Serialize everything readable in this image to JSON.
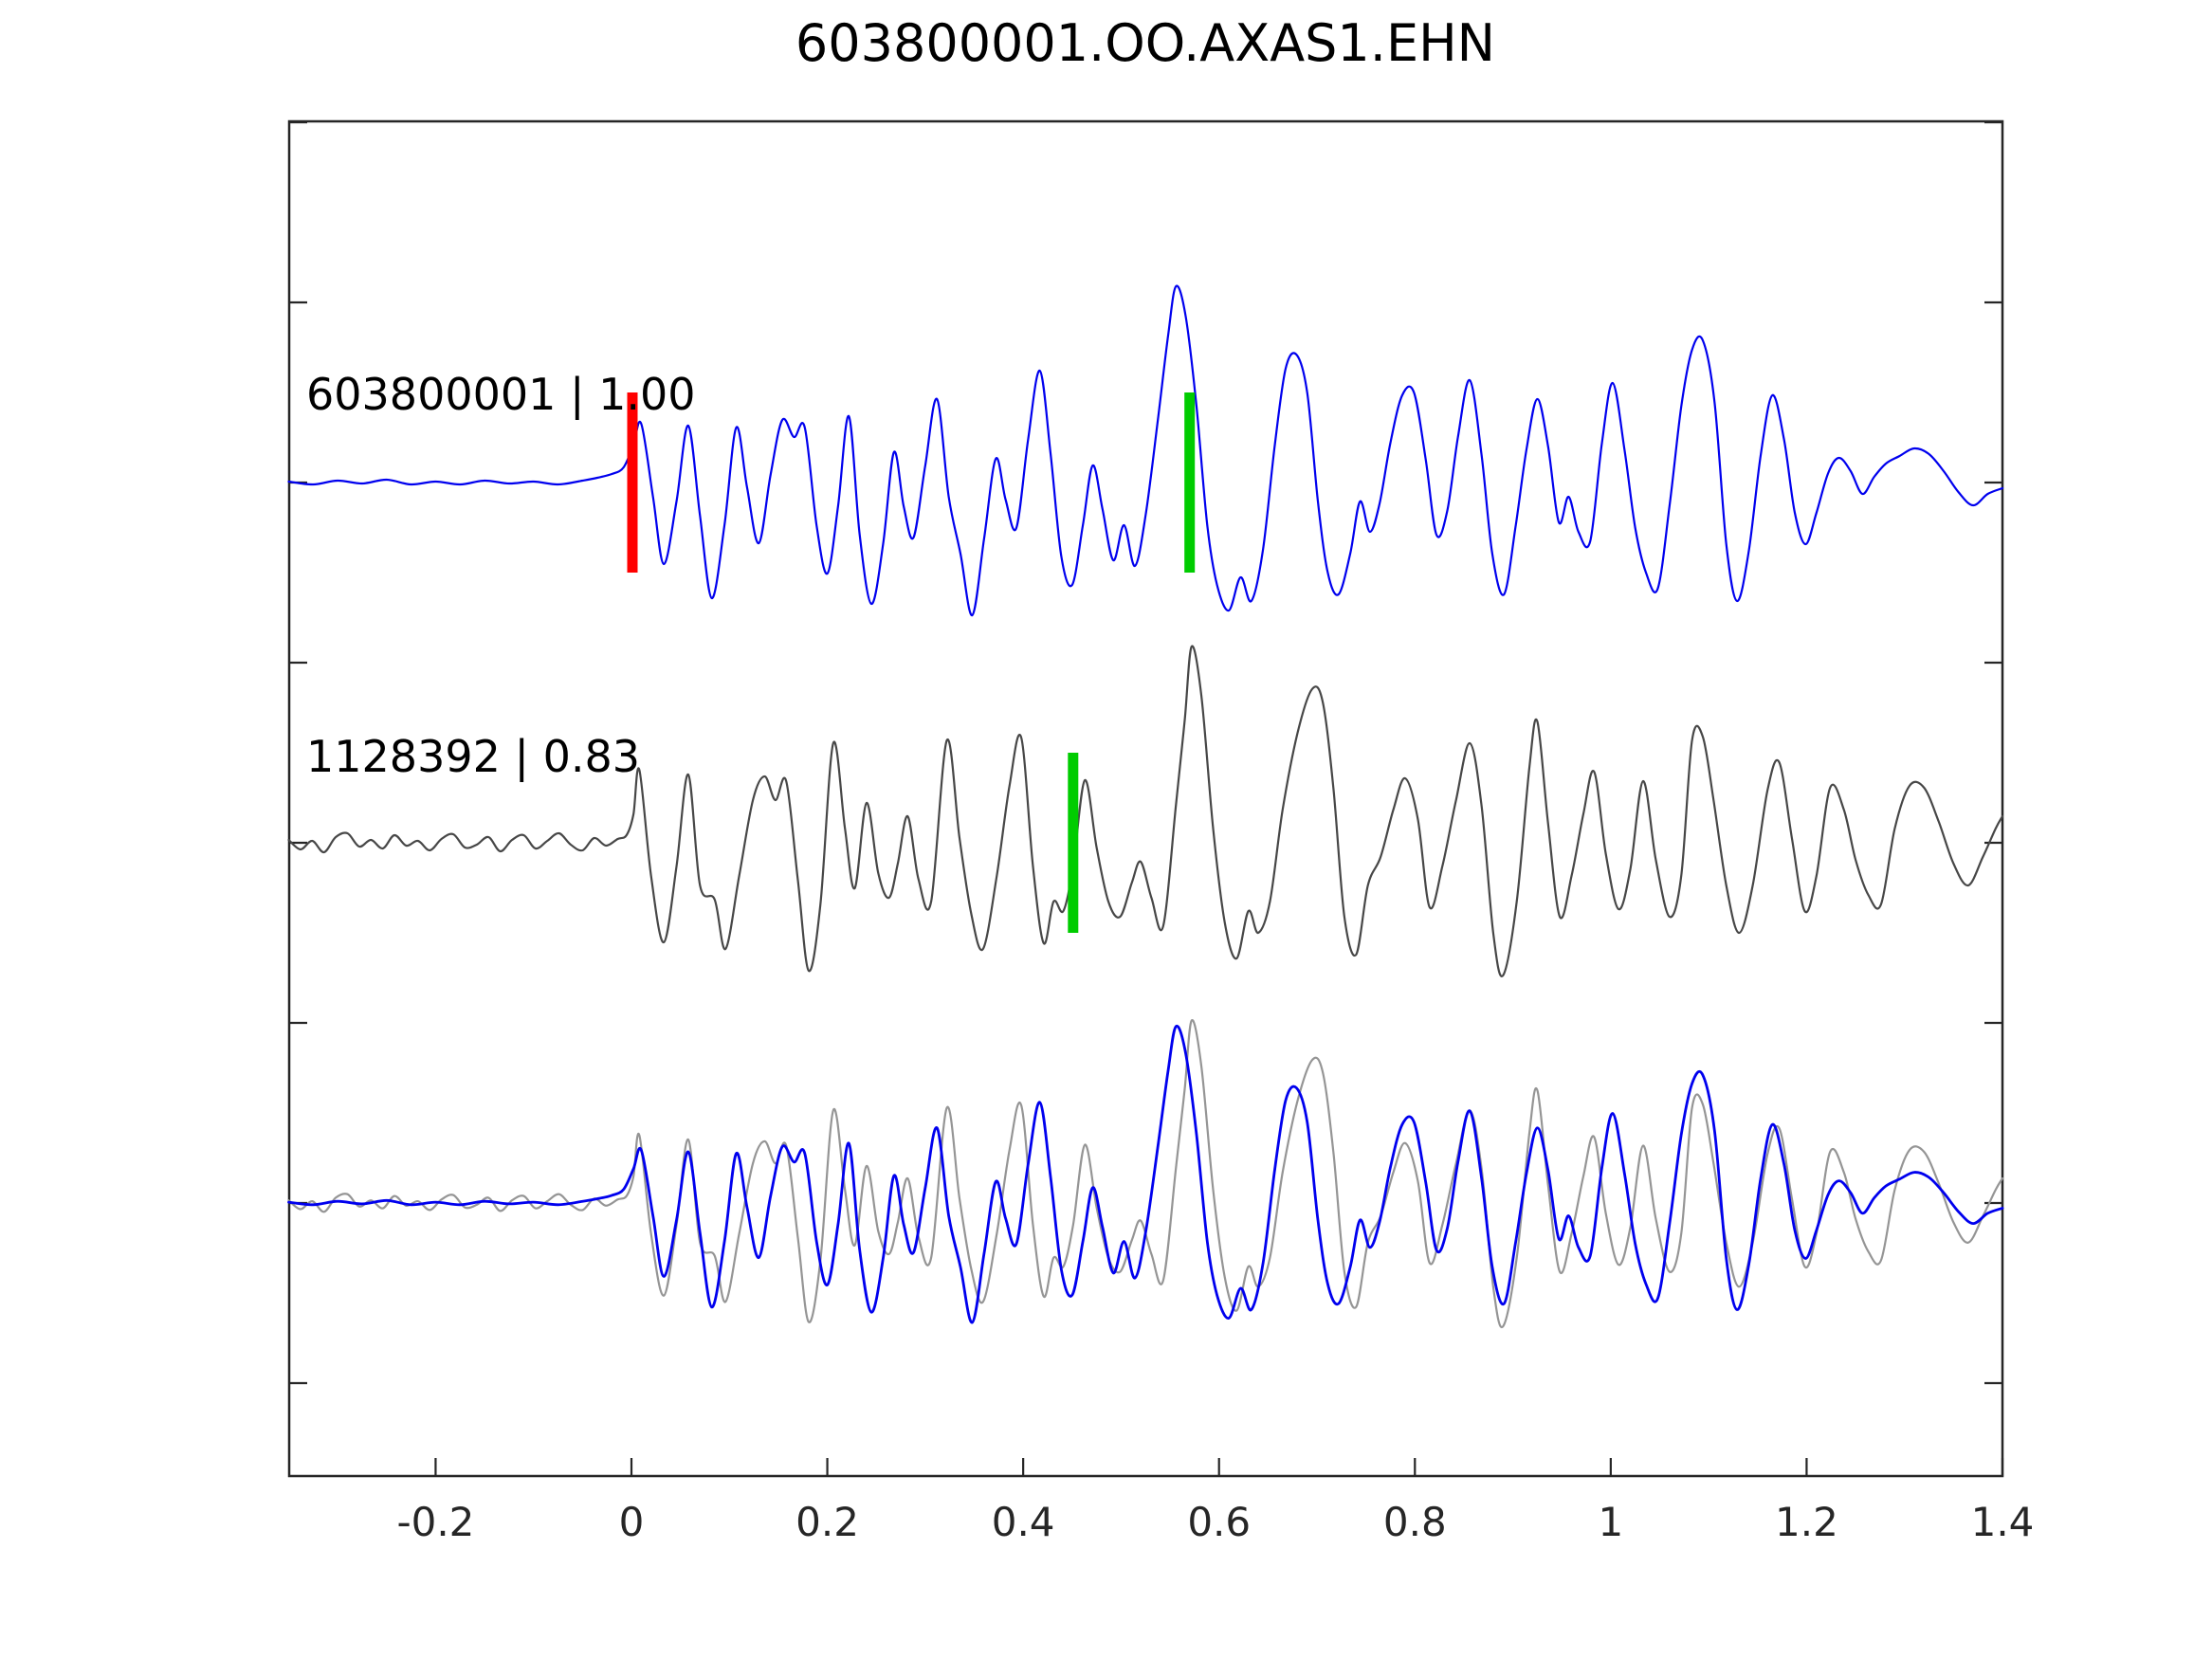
{
  "title": "603800001.OO.AXAS1.EHN",
  "chart_data": {
    "type": "line",
    "title": "603800001.OO.AXAS1.EHN",
    "xlabel": "",
    "ylabel": "",
    "xlim": [
      -0.35,
      1.4
    ],
    "grid": false,
    "legend": "none",
    "x_ticks": [
      -0.2,
      0,
      0.2,
      0.4,
      0.6,
      0.8,
      1.0,
      1.2,
      1.4
    ],
    "x_tick_labels": [
      "-0.2",
      "0",
      "0.2",
      "0.4",
      "0.6",
      "0.8",
      "1",
      "1.2",
      "1.4"
    ],
    "colors": {
      "trace1": "#0000ee",
      "trace2": "#474747",
      "overlay_gray": "#959595",
      "overlay_blue": "#0000ee",
      "pick_red": "#ff0000",
      "pick_green": "#00cc00",
      "axis": "#262626"
    },
    "traces": [
      {
        "id": "603800001",
        "score": "1.00",
        "label": "603800001 | 1.00",
        "row": 0,
        "color": "#0000ee",
        "markers": [
          {
            "name": "pick-red",
            "color": "#ff0000",
            "t": 0.001
          },
          {
            "name": "pick-green",
            "color": "#00cc00",
            "t": 0.57
          }
        ],
        "points": [
          [
            -0.35,
            1
          ],
          [
            -0.325,
            -2
          ],
          [
            -0.3,
            2
          ],
          [
            -0.275,
            -1
          ],
          [
            -0.25,
            3
          ],
          [
            -0.225,
            -2
          ],
          [
            -0.2,
            1
          ],
          [
            -0.175,
            -2
          ],
          [
            -0.15,
            2
          ],
          [
            -0.125,
            -1
          ],
          [
            -0.1,
            1
          ],
          [
            -0.075,
            -2
          ],
          [
            -0.05,
            2
          ],
          [
            -0.035,
            5
          ],
          [
            -0.02,
            9
          ],
          [
            -0.008,
            16
          ],
          [
            0.002,
            40
          ],
          [
            0.01,
            62
          ],
          [
            0.022,
            -15
          ],
          [
            0.033,
            -86
          ],
          [
            0.046,
            -20
          ],
          [
            0.058,
            60
          ],
          [
            0.07,
            -35
          ],
          [
            0.082,
            -122
          ],
          [
            0.095,
            -45
          ],
          [
            0.107,
            58
          ],
          [
            0.118,
            -5
          ],
          [
            0.13,
            -64
          ],
          [
            0.142,
            8
          ],
          [
            0.154,
            66
          ],
          [
            0.166,
            48
          ],
          [
            0.177,
            58
          ],
          [
            0.189,
            -45
          ],
          [
            0.2,
            -96
          ],
          [
            0.211,
            -25
          ],
          [
            0.222,
            70
          ],
          [
            0.233,
            -55
          ],
          [
            0.245,
            -128
          ],
          [
            0.257,
            -65
          ],
          [
            0.268,
            32
          ],
          [
            0.278,
            -25
          ],
          [
            0.288,
            -58
          ],
          [
            0.3,
            18
          ],
          [
            0.312,
            88
          ],
          [
            0.324,
            -15
          ],
          [
            0.336,
            -75
          ],
          [
            0.348,
            -140
          ],
          [
            0.36,
            -60
          ],
          [
            0.372,
            25
          ],
          [
            0.382,
            -18
          ],
          [
            0.393,
            -48
          ],
          [
            0.405,
            45
          ],
          [
            0.417,
            118
          ],
          [
            0.428,
            30
          ],
          [
            0.439,
            -78
          ],
          [
            0.45,
            -108
          ],
          [
            0.461,
            -45
          ],
          [
            0.471,
            18
          ],
          [
            0.481,
            -28
          ],
          [
            0.492,
            -82
          ],
          [
            0.503,
            -45
          ],
          [
            0.514,
            -88
          ],
          [
            0.525,
            -35
          ],
          [
            0.538,
            70
          ],
          [
            0.548,
            155
          ],
          [
            0.556,
            207
          ],
          [
            0.566,
            175
          ],
          [
            0.577,
            80
          ],
          [
            0.588,
            -45
          ],
          [
            0.598,
            -108
          ],
          [
            0.61,
            -135
          ],
          [
            0.622,
            -100
          ],
          [
            0.633,
            -125
          ],
          [
            0.645,
            -70
          ],
          [
            0.657,
            40
          ],
          [
            0.668,
            120
          ],
          [
            0.679,
            135
          ],
          [
            0.69,
            95
          ],
          [
            0.701,
            -20
          ],
          [
            0.711,
            -95
          ],
          [
            0.722,
            -118
          ],
          [
            0.734,
            -75
          ],
          [
            0.744,
            -20
          ],
          [
            0.754,
            -52
          ],
          [
            0.764,
            -22
          ],
          [
            0.775,
            42
          ],
          [
            0.787,
            92
          ],
          [
            0.799,
            95
          ],
          [
            0.811,
            25
          ],
          [
            0.822,
            -55
          ],
          [
            0.833,
            -30
          ],
          [
            0.844,
            48
          ],
          [
            0.856,
            108
          ],
          [
            0.868,
            30
          ],
          [
            0.879,
            -75
          ],
          [
            0.891,
            -118
          ],
          [
            0.903,
            -45
          ],
          [
            0.914,
            35
          ],
          [
            0.925,
            88
          ],
          [
            0.936,
            38
          ],
          [
            0.947,
            -42
          ],
          [
            0.957,
            -15
          ],
          [
            0.967,
            -52
          ],
          [
            0.979,
            -62
          ],
          [
            0.991,
            42
          ],
          [
            1.002,
            105
          ],
          [
            1.014,
            35
          ],
          [
            1.025,
            -48
          ],
          [
            1.036,
            -95
          ],
          [
            1.048,
            -112
          ],
          [
            1.06,
            -25
          ],
          [
            1.072,
            80
          ],
          [
            1.083,
            140
          ],
          [
            1.094,
            150
          ],
          [
            1.106,
            85
          ],
          [
            1.118,
            -65
          ],
          [
            1.129,
            -125
          ],
          [
            1.141,
            -72
          ],
          [
            1.153,
            28
          ],
          [
            1.165,
            92
          ],
          [
            1.177,
            45
          ],
          [
            1.188,
            -32
          ],
          [
            1.199,
            -65
          ],
          [
            1.21,
            -32
          ],
          [
            1.222,
            10
          ],
          [
            1.233,
            26
          ],
          [
            1.245,
            12
          ],
          [
            1.257,
            -12
          ],
          [
            1.269,
            6
          ],
          [
            1.281,
            20
          ],
          [
            1.295,
            28
          ],
          [
            1.31,
            36
          ],
          [
            1.325,
            30
          ],
          [
            1.34,
            12
          ],
          [
            1.355,
            -10
          ],
          [
            1.37,
            -24
          ],
          [
            1.385,
            -12
          ],
          [
            1.4,
            -6
          ]
        ]
      },
      {
        "id": "1128392",
        "score": "0.83",
        "label": "1128392 | 0.83",
        "row": 1,
        "color": "#474747",
        "markers": [
          {
            "name": "pick-green",
            "color": "#00cc00",
            "t": 0.451
          }
        ],
        "points": [
          [
            -0.35,
            3
          ],
          [
            -0.338,
            -7
          ],
          [
            -0.326,
            2
          ],
          [
            -0.314,
            -10
          ],
          [
            -0.302,
            6
          ],
          [
            -0.29,
            10
          ],
          [
            -0.278,
            -4
          ],
          [
            -0.266,
            3
          ],
          [
            -0.254,
            -6
          ],
          [
            -0.242,
            8
          ],
          [
            -0.23,
            -3
          ],
          [
            -0.218,
            2
          ],
          [
            -0.206,
            -8
          ],
          [
            -0.194,
            4
          ],
          [
            -0.182,
            9
          ],
          [
            -0.17,
            -5
          ],
          [
            -0.158,
            -2
          ],
          [
            -0.146,
            6
          ],
          [
            -0.134,
            -9
          ],
          [
            -0.122,
            3
          ],
          [
            -0.11,
            8
          ],
          [
            -0.098,
            -6
          ],
          [
            -0.086,
            2
          ],
          [
            -0.074,
            10
          ],
          [
            -0.062,
            -2
          ],
          [
            -0.05,
            -8
          ],
          [
            -0.038,
            5
          ],
          [
            -0.026,
            -3
          ],
          [
            -0.014,
            4
          ],
          [
            -0.005,
            8
          ],
          [
            0.002,
            30
          ],
          [
            0.008,
            77
          ],
          [
            0.02,
            -35
          ],
          [
            0.033,
            -105
          ],
          [
            0.046,
            -25
          ],
          [
            0.058,
            72
          ],
          [
            0.07,
            -45
          ],
          [
            0.085,
            -60
          ],
          [
            0.096,
            -112
          ],
          [
            0.11,
            -35
          ],
          [
            0.124,
            45
          ],
          [
            0.136,
            70
          ],
          [
            0.147,
            45
          ],
          [
            0.158,
            65
          ],
          [
            0.17,
            -40
          ],
          [
            0.181,
            -135
          ],
          [
            0.193,
            -65
          ],
          [
            0.206,
            105
          ],
          [
            0.218,
            15
          ],
          [
            0.228,
            -48
          ],
          [
            0.24,
            42
          ],
          [
            0.252,
            -32
          ],
          [
            0.263,
            -58
          ],
          [
            0.272,
            -22
          ],
          [
            0.282,
            28
          ],
          [
            0.293,
            -38
          ],
          [
            0.306,
            -62
          ],
          [
            0.322,
            108
          ],
          [
            0.335,
            5
          ],
          [
            0.347,
            -75
          ],
          [
            0.359,
            -112
          ],
          [
            0.373,
            -35
          ],
          [
            0.386,
            60
          ],
          [
            0.398,
            111
          ],
          [
            0.41,
            -25
          ],
          [
            0.421,
            -106
          ],
          [
            0.431,
            -62
          ],
          [
            0.441,
            -72
          ],
          [
            0.451,
            -25
          ],
          [
            0.463,
            66
          ],
          [
            0.475,
            -5
          ],
          [
            0.487,
            -62
          ],
          [
            0.499,
            -78
          ],
          [
            0.511,
            -42
          ],
          [
            0.52,
            -20
          ],
          [
            0.531,
            -58
          ],
          [
            0.543,
            -88
          ],
          [
            0.556,
            40
          ],
          [
            0.565,
            130
          ],
          [
            0.572,
            207
          ],
          [
            0.582,
            155
          ],
          [
            0.594,
            15
          ],
          [
            0.606,
            -85
          ],
          [
            0.618,
            -122
          ],
          [
            0.63,
            -72
          ],
          [
            0.64,
            -95
          ],
          [
            0.652,
            -62
          ],
          [
            0.665,
            35
          ],
          [
            0.68,
            115
          ],
          [
            0.695,
            162
          ],
          [
            0.706,
            148
          ],
          [
            0.717,
            55
          ],
          [
            0.728,
            -78
          ],
          [
            0.74,
            -118
          ],
          [
            0.752,
            -45
          ],
          [
            0.765,
            -15
          ],
          [
            0.778,
            35
          ],
          [
            0.79,
            68
          ],
          [
            0.803,
            25
          ],
          [
            0.815,
            -68
          ],
          [
            0.828,
            -25
          ],
          [
            0.842,
            45
          ],
          [
            0.856,
            105
          ],
          [
            0.868,
            40
          ],
          [
            0.88,
            -95
          ],
          [
            0.89,
            -140
          ],
          [
            0.904,
            -62
          ],
          [
            0.917,
            80
          ],
          [
            0.925,
            128
          ],
          [
            0.936,
            20
          ],
          [
            0.948,
            -78
          ],
          [
            0.96,
            -35
          ],
          [
            0.972,
            30
          ],
          [
            0.983,
            75
          ],
          [
            0.995,
            -12
          ],
          [
            1.008,
            -70
          ],
          [
            1.02,
            -28
          ],
          [
            1.033,
            65
          ],
          [
            1.046,
            -18
          ],
          [
            1.06,
            -78
          ],
          [
            1.072,
            -35
          ],
          [
            1.083,
            108
          ],
          [
            1.094,
            112
          ],
          [
            1.105,
            45
          ],
          [
            1.118,
            -45
          ],
          [
            1.131,
            -95
          ],
          [
            1.145,
            -45
          ],
          [
            1.16,
            55
          ],
          [
            1.172,
            85
          ],
          [
            1.185,
            5
          ],
          [
            1.198,
            -72
          ],
          [
            1.21,
            -35
          ],
          [
            1.224,
            58
          ],
          [
            1.238,
            35
          ],
          [
            1.25,
            -18
          ],
          [
            1.263,
            -55
          ],
          [
            1.276,
            -65
          ],
          [
            1.29,
            15
          ],
          [
            1.305,
            60
          ],
          [
            1.32,
            58
          ],
          [
            1.335,
            22
          ],
          [
            1.35,
            -22
          ],
          [
            1.365,
            -45
          ],
          [
            1.38,
            -15
          ],
          [
            1.393,
            15
          ],
          [
            1.4,
            28
          ]
        ]
      },
      {
        "id": "overlay",
        "label": "",
        "row": 2,
        "series": [
          {
            "ref": 1,
            "color": "#959595",
            "scale": 0.93,
            "width": 2.2
          },
          {
            "ref": 0,
            "color": "#0000ee",
            "scale": 0.9,
            "width": 2.8
          }
        ]
      }
    ]
  }
}
